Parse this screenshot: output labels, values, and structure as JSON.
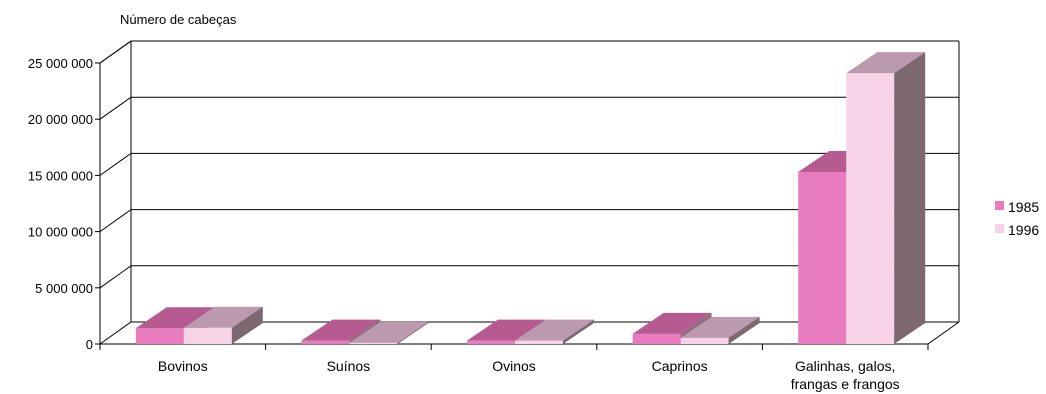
{
  "chart_data": {
    "type": "bar",
    "ylabel": "Número de cabeças",
    "categories": [
      "Bovinos",
      "Suínos",
      "Ovinos",
      "Caprinos",
      [
        "Galinhas, galos,",
        "frangas e frangos"
      ]
    ],
    "series": [
      {
        "name": "1985",
        "values": [
          1400000,
          300000,
          300000,
          900000,
          15300000
        ],
        "color": "#e87bbd",
        "top_color": "#b55b91",
        "side_color": "#8f6c7e"
      },
      {
        "name": "1996",
        "values": [
          1450000,
          100000,
          300000,
          550000,
          24100000
        ],
        "color": "#f8d3e8",
        "top_color": "#bb9aaf",
        "side_color": "#7d6872"
      }
    ],
    "yticks": [
      0,
      5000000,
      10000000,
      15000000,
      20000000,
      25000000
    ],
    "ytick_labels": [
      "0",
      "5 000 000",
      "10 000 000",
      "15 000 000",
      "20 000 000",
      "25 000 000"
    ],
    "ylim": [
      0,
      25000000
    ],
    "grid": true,
    "three_d": true,
    "legend": "right"
  }
}
